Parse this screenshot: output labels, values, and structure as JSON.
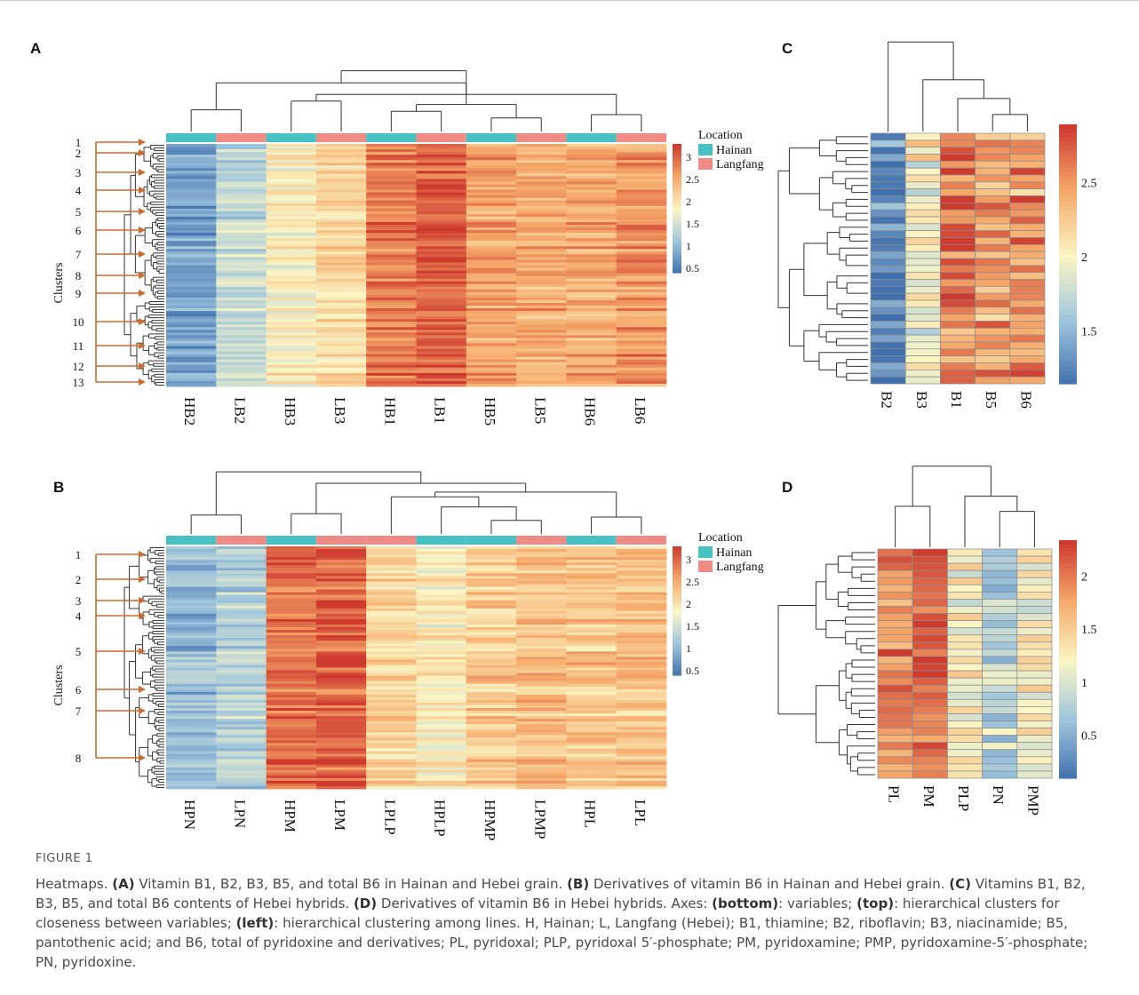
{
  "colors": {
    "hainan": "#48c1c4",
    "langfang": "#f08a84",
    "arrow": "#cf6a2e",
    "low": "#3f6fad",
    "mid": "#fbf6c4",
    "high": "#cf3a2f"
  },
  "chart_data": [
    {
      "panel": "A",
      "type": "heatmap",
      "columns": [
        "HB2",
        "LB2",
        "HB3",
        "LB3",
        "HB1",
        "LB1",
        "HB5",
        "LB5",
        "HB6",
        "LB6"
      ],
      "location": [
        "Hainan",
        "Langfang",
        "Hainan",
        "Langfang",
        "Hainan",
        "Langfang",
        "Hainan",
        "Langfang",
        "Hainan",
        "Langfang"
      ],
      "column_levels": [
        0.85,
        1.45,
        1.9,
        2.15,
        2.85,
        3.05,
        2.6,
        2.55,
        2.55,
        2.7
      ],
      "y_axis_label": "Clusters",
      "cluster_labels": [
        "1",
        "2",
        "3",
        "4",
        "5",
        "6",
        "7",
        "8",
        "9",
        "10",
        "11",
        "12",
        "13"
      ],
      "legend_title": "Location",
      "legend_items": [
        "Hainan",
        "Langfang"
      ],
      "colorbar_ticks": [
        "3",
        "2.5",
        "2",
        "1.5",
        "1",
        "0.5"
      ],
      "colorbar_range": [
        0.4,
        3.3
      ]
    },
    {
      "panel": "B",
      "type": "heatmap",
      "columns": [
        "HPN",
        "LPN",
        "HPM",
        "LPM",
        "LPLP",
        "HPLP",
        "HPMP",
        "LPMP",
        "HPL",
        "LPL"
      ],
      "location": [
        "Hainan",
        "Langfang",
        "Hainan",
        "Langfang",
        "Langfang",
        "Hainan",
        "Hainan",
        "Langfang",
        "Hainan",
        "Langfang"
      ],
      "column_levels": [
        1.05,
        1.3,
        2.95,
        3.05,
        2.15,
        1.95,
        2.25,
        2.35,
        2.3,
        2.35
      ],
      "y_axis_label": "Clusters",
      "cluster_labels": [
        "1",
        "2",
        "3",
        "4",
        "5",
        "6",
        "7",
        "8"
      ],
      "legend_title": "Location",
      "legend_items": [
        "Hainan",
        "Langfang"
      ],
      "colorbar_ticks": [
        "3",
        "2.5",
        "2",
        "1.5",
        "1",
        "0.5"
      ],
      "colorbar_range": [
        0.4,
        3.3
      ]
    },
    {
      "panel": "C",
      "type": "heatmap",
      "columns": [
        "B2",
        "B3",
        "B1",
        "B5",
        "B6"
      ],
      "column_levels": [
        1.25,
        2.0,
        2.65,
        2.5,
        2.55
      ],
      "colorbar_ticks": [
        "2.5",
        "2",
        "1.5"
      ],
      "colorbar_range": [
        1.15,
        2.9
      ]
    },
    {
      "panel": "D",
      "type": "heatmap",
      "columns": [
        "PL",
        "PM",
        "PLP",
        "PN",
        "PMP"
      ],
      "column_levels": [
        2.0,
        2.15,
        1.25,
        0.85,
        1.3
      ],
      "colorbar_ticks": [
        "2",
        "1.5",
        "1",
        "0.5"
      ],
      "colorbar_range": [
        0.1,
        2.35
      ]
    }
  ],
  "caption": {
    "figure_label": "FIGURE 1",
    "title": "Heatmaps.",
    "parts": [
      {
        "bold": "(A)",
        "text": " Vitamin B1, B2, B3, B5, and total B6 in Hainan and Hebei grain. "
      },
      {
        "bold": "(B)",
        "text": " Derivatives of vitamin B6 in Hainan and Hebei grain. "
      },
      {
        "bold": "(C)",
        "text": " Vitamins B1, B2, B3, B5, and total B6 contents of Hebei hybrids. "
      },
      {
        "bold": "(D)",
        "text": " Derivatives of vitamin B6 in Hebei hybrids. Axes: "
      },
      {
        "bold": "(bottom)",
        "text": ": variables; "
      },
      {
        "bold": "(top)",
        "text": ": hierarchical clusters for closeness between variables; "
      },
      {
        "bold": "(left)",
        "text": ": hierarchical clustering among lines. H, Hainan; L, Langfang (Hebei); B1, thiamine; B2, riboflavin; B3, niacinamide; B5, pantothenic acid; and B6, total of pyridoxine and derivatives; PL, pyridoxal; PLP, pyridoxal 5′-phosphate; PM, pyridoxamine; PMP, pyridoxamine-5′-phosphate; PN, pyridoxine."
      }
    ]
  }
}
